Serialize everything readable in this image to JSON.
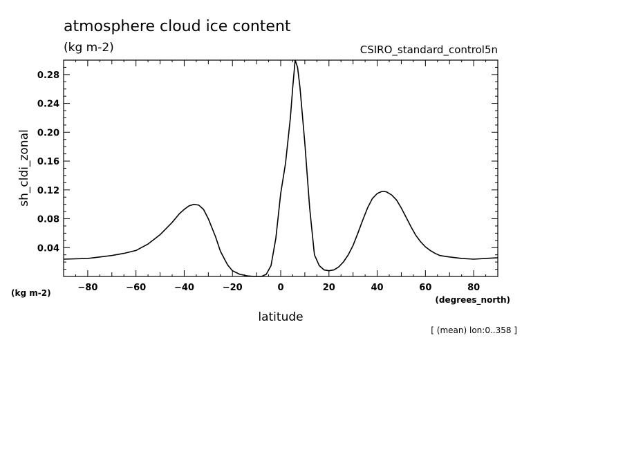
{
  "chart_data": {
    "type": "line",
    "title": "atmosphere cloud ice content",
    "subtitle": "(kg m-2)",
    "model": "CSIRO_standard_control5n",
    "xlabel": "latitude",
    "ylabel": "sh_cldi_zonal",
    "x_unit": "(degrees_north)",
    "y_unit": "(kg m-2)",
    "note": "[ (mean) lon:0..358 ]",
    "xlim": [
      -90,
      90
    ],
    "ylim": [
      0,
      0.3
    ],
    "xticks": [
      -80,
      -60,
      -40,
      -20,
      0,
      20,
      40,
      60,
      80
    ],
    "yticks": [
      0.04,
      0.08,
      0.12,
      0.16,
      0.2,
      0.24,
      0.28
    ],
    "ytick_labels": [
      "0.04",
      "0.08",
      "0.12",
      "0.16",
      "0.20",
      "0.24",
      "0.28"
    ],
    "x": [
      -90,
      -80,
      -70,
      -65,
      -60,
      -55,
      -50,
      -45,
      -42,
      -40,
      -38,
      -36,
      -34,
      -32,
      -30,
      -27,
      -25,
      -22,
      -20,
      -17,
      -14,
      -11,
      -8,
      -6,
      -4,
      -2,
      0,
      2,
      4,
      5,
      6,
      7,
      8,
      10,
      12,
      14,
      16,
      18,
      20,
      22,
      24,
      26,
      28,
      30,
      32,
      34,
      36,
      38,
      40,
      42,
      43,
      44,
      46,
      48,
      50,
      52,
      54,
      56,
      58,
      60,
      62,
      64,
      66,
      68,
      70,
      75,
      80,
      85,
      90
    ],
    "y": [
      0.024,
      0.025,
      0.029,
      0.032,
      0.036,
      0.045,
      0.058,
      0.075,
      0.087,
      0.093,
      0.098,
      0.1,
      0.099,
      0.093,
      0.08,
      0.055,
      0.035,
      0.016,
      0.008,
      0.003,
      0.001,
      0.0,
      0.0,
      0.003,
      0.015,
      0.053,
      0.115,
      0.157,
      0.22,
      0.262,
      0.3,
      0.29,
      0.262,
      0.185,
      0.095,
      0.03,
      0.015,
      0.009,
      0.008,
      0.009,
      0.013,
      0.02,
      0.03,
      0.043,
      0.06,
      0.078,
      0.095,
      0.108,
      0.115,
      0.118,
      0.118,
      0.117,
      0.113,
      0.106,
      0.095,
      0.082,
      0.069,
      0.057,
      0.048,
      0.041,
      0.036,
      0.032,
      0.029,
      0.028,
      0.027,
      0.025,
      0.024,
      0.025,
      0.026
    ]
  }
}
